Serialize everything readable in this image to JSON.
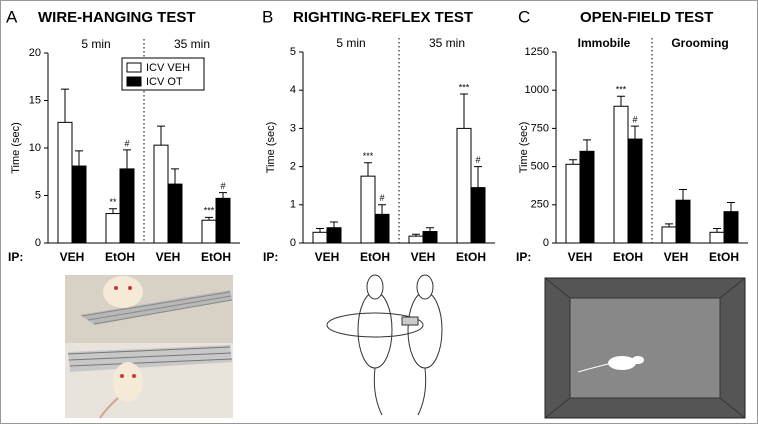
{
  "chart_data": [
    {
      "type": "bar",
      "panel": "A",
      "title": "WIRE-HANGING TEST",
      "ylabel": "Time (sec)",
      "groups": [
        "5 min",
        "35 min"
      ],
      "x_prefix": "IP:",
      "categories": [
        "VEH",
        "EtOH",
        "VEH",
        "EtOH"
      ],
      "ylim": [
        0,
        20
      ],
      "yticks": [
        0,
        5,
        10,
        15,
        20
      ],
      "legend": "upper right",
      "series": [
        {
          "name": "ICV VEH",
          "color": "#ffffff",
          "values": [
            12.7,
            3.1,
            10.3,
            2.4
          ],
          "errors": [
            3.5,
            0.5,
            2.0,
            0.3
          ],
          "annotations": [
            null,
            "**",
            null,
            "***"
          ]
        },
        {
          "name": "ICV OT",
          "color": "#000000",
          "values": [
            8.1,
            7.8,
            6.2,
            4.7
          ],
          "errors": [
            1.6,
            2.0,
            1.6,
            0.6
          ],
          "annotations": [
            null,
            "#",
            null,
            "#"
          ]
        }
      ]
    },
    {
      "type": "bar",
      "panel": "B",
      "title": "RIGHTING-REFLEX TEST",
      "ylabel": "Time (sec)",
      "groups": [
        "5 min",
        "35 min"
      ],
      "x_prefix": "IP:",
      "categories": [
        "VEH",
        "EtOH",
        "VEH",
        "EtOH"
      ],
      "ylim": [
        0,
        5
      ],
      "yticks": [
        0,
        1,
        2,
        3,
        4,
        5
      ],
      "series": [
        {
          "color": "#ffffff",
          "values": [
            0.28,
            1.75,
            0.18,
            3.0
          ],
          "errors": [
            0.1,
            0.35,
            0.05,
            0.9
          ],
          "annotations": [
            null,
            "***",
            null,
            "***"
          ]
        },
        {
          "color": "#000000",
          "values": [
            0.4,
            0.75,
            0.3,
            1.45
          ],
          "errors": [
            0.15,
            0.25,
            0.1,
            0.55
          ],
          "annotations": [
            null,
            "#",
            null,
            "#"
          ]
        }
      ]
    },
    {
      "type": "bar",
      "panel": "C",
      "title": "OPEN-FIELD TEST",
      "ylabel": "Time (sec)",
      "groups": [
        "Immobile",
        "Grooming"
      ],
      "x_prefix": "IP:",
      "categories": [
        "VEH",
        "EtOH",
        "VEH",
        "EtOH"
      ],
      "ylim": [
        0,
        1250
      ],
      "yticks": [
        0,
        250,
        500,
        750,
        1000,
        1250
      ],
      "series": [
        {
          "color": "#ffffff",
          "values": [
            515,
            895,
            105,
            70
          ],
          "errors": [
            30,
            65,
            20,
            25
          ],
          "annotations": [
            null,
            "***",
            null,
            null
          ]
        },
        {
          "color": "#000000",
          "values": [
            600,
            680,
            280,
            205
          ],
          "errors": [
            75,
            85,
            70,
            60
          ],
          "annotations": [
            null,
            "#",
            null,
            null
          ]
        }
      ]
    }
  ]
}
